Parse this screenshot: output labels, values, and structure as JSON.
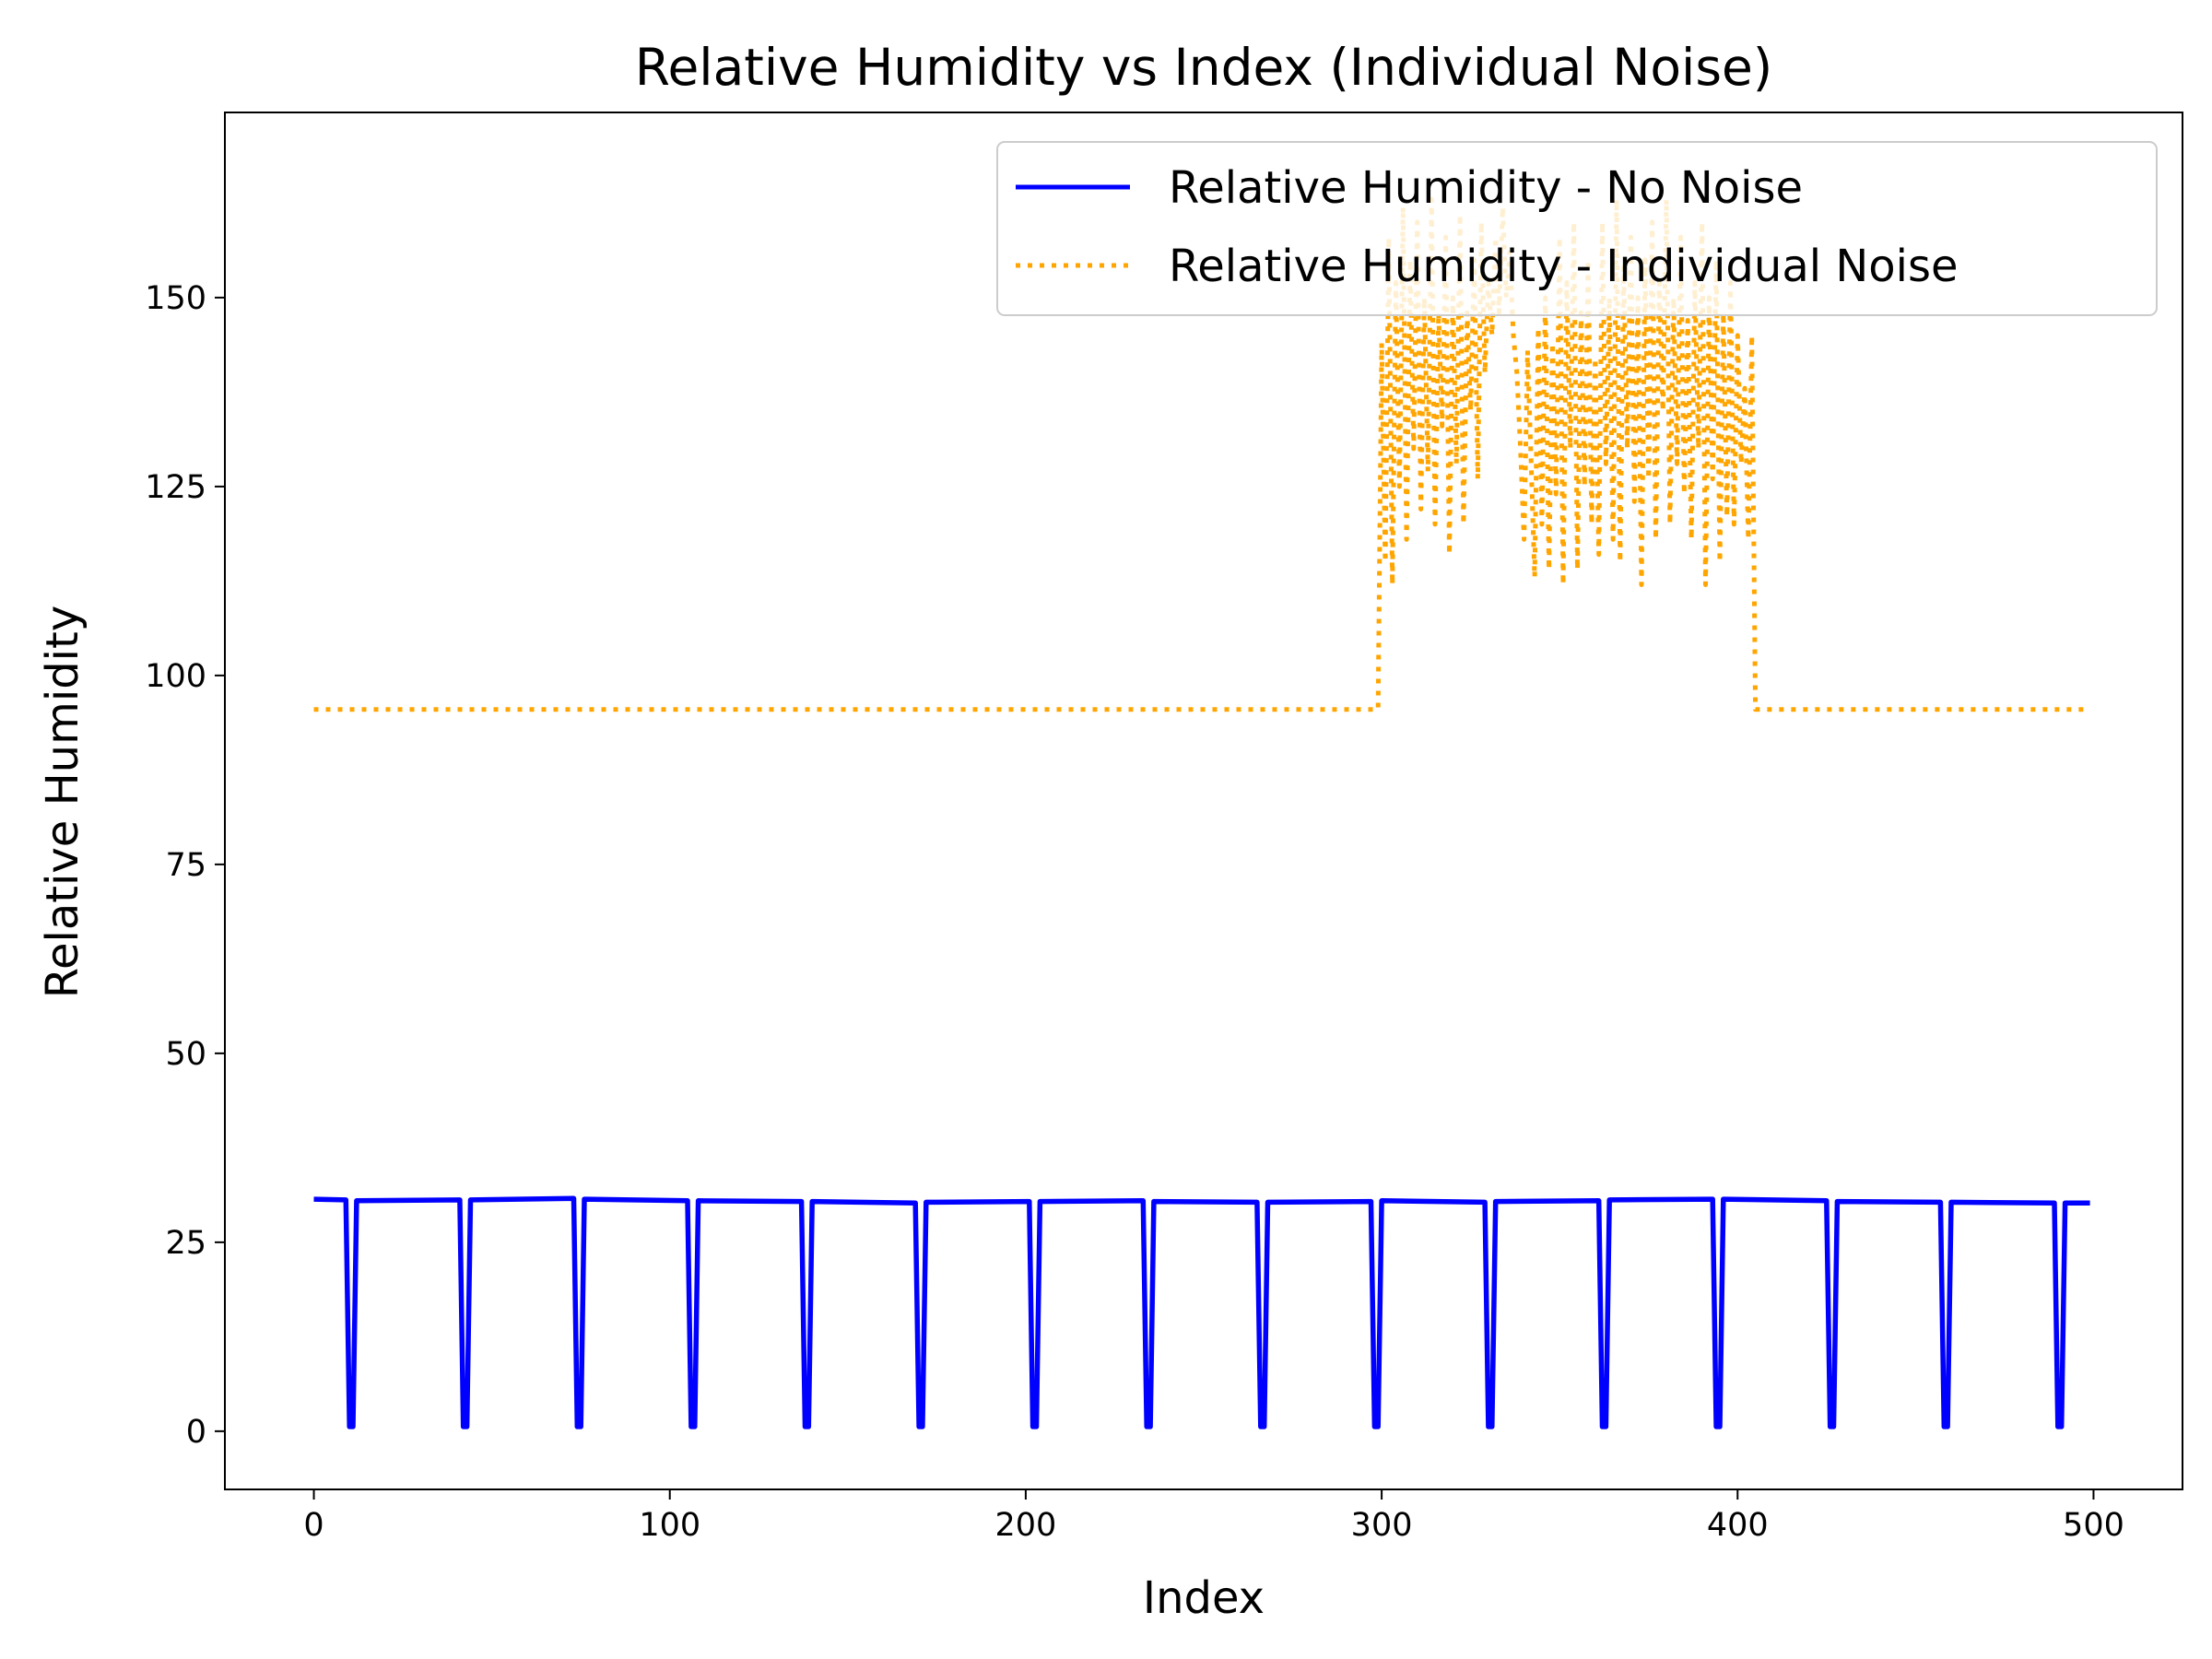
{
  "chart_data": {
    "type": "line",
    "title": "Relative Humidity vs Index (Individual Noise)",
    "xlabel": "Index",
    "ylabel": "Relative Humidity",
    "xlim": [
      -25,
      525
    ],
    "ylim": [
      -7.7,
      174.5
    ],
    "xticks": [
      0,
      100,
      200,
      300,
      400,
      500
    ],
    "yticks": [
      0,
      25,
      50,
      75,
      100,
      125,
      150
    ],
    "grid": false,
    "legend_position": "top-right",
    "series": [
      {
        "name": "Relative Humidity - No Noise",
        "color": "#0000ff",
        "style": "solid",
        "x": [
          0,
          9,
          10,
          11,
          12,
          41,
          42,
          43,
          44,
          73,
          74,
          75,
          76,
          105,
          106,
          107,
          108,
          137,
          138,
          139,
          140,
          169,
          170,
          171,
          172,
          201,
          202,
          203,
          204,
          233,
          234,
          235,
          236,
          265,
          266,
          267,
          268,
          297,
          298,
          299,
          300,
          329,
          330,
          331,
          332,
          361,
          362,
          363,
          364,
          393,
          394,
          395,
          396,
          425,
          426,
          427,
          428,
          457,
          458,
          459,
          460,
          489,
          490,
          491,
          492,
          499
        ],
        "y": [
          30.7,
          30.6,
          0.6,
          0.6,
          30.5,
          30.6,
          0.6,
          0.6,
          30.6,
          30.8,
          0.6,
          0.6,
          30.7,
          30.5,
          0.6,
          0.6,
          30.5,
          30.4,
          0.6,
          0.6,
          30.4,
          30.2,
          0.6,
          0.6,
          30.3,
          30.4,
          0.6,
          0.6,
          30.4,
          30.5,
          0.6,
          0.6,
          30.4,
          30.3,
          0.6,
          0.6,
          30.3,
          30.4,
          0.6,
          0.6,
          30.5,
          30.3,
          0.6,
          0.6,
          30.4,
          30.5,
          0.6,
          0.6,
          30.6,
          30.7,
          0.6,
          0.6,
          30.7,
          30.5,
          0.6,
          0.6,
          30.4,
          30.3,
          0.6,
          0.6,
          30.3,
          30.2,
          0.6,
          0.6,
          30.2,
          30.2
        ]
      },
      {
        "name": "Relative Humidity - Individual Noise",
        "color": "#ffa500",
        "style": "dotted",
        "x": [
          0,
          299,
          300,
          301,
          302,
          303,
          304,
          305,
          306,
          307,
          308,
          309,
          310,
          311,
          312,
          313,
          314,
          315,
          316,
          317,
          318,
          319,
          320,
          321,
          322,
          323,
          324,
          325,
          326,
          327,
          328,
          329,
          330,
          331,
          332,
          333,
          334,
          335,
          336,
          337,
          338,
          339,
          340,
          341,
          342,
          343,
          344,
          345,
          346,
          347,
          348,
          349,
          350,
          351,
          352,
          353,
          354,
          355,
          356,
          357,
          358,
          359,
          360,
          361,
          362,
          363,
          364,
          365,
          366,
          367,
          368,
          369,
          370,
          371,
          372,
          373,
          374,
          375,
          376,
          377,
          378,
          379,
          380,
          381,
          382,
          383,
          384,
          385,
          386,
          387,
          388,
          389,
          390,
          391,
          392,
          393,
          394,
          395,
          396,
          397,
          398,
          399,
          400,
          401,
          402,
          403,
          404,
          405,
          499
        ],
        "y": [
          95.5,
          95.5,
          144,
          115,
          158,
          112,
          152,
          125,
          162,
          118,
          155,
          130,
          160,
          122,
          150,
          127,
          163,
          120,
          148,
          133,
          158,
          116,
          150,
          128,
          161,
          120,
          148,
          135,
          155,
          126,
          160,
          140,
          152,
          145,
          158,
          148,
          162,
          150,
          156,
          145,
          140,
          130,
          118,
          143,
          128,
          113,
          146,
          120,
          150,
          114,
          144,
          124,
          158,
          112,
          152,
          130,
          160,
          114,
          148,
          125,
          155,
          120,
          142,
          116,
          160,
          128,
          150,
          118,
          163,
          115,
          154,
          130,
          158,
          123,
          150,
          112,
          155,
          126,
          160,
          118,
          152,
          135,
          163,
          120,
          150,
          128,
          158,
          124,
          147,
          118,
          152,
          130,
          160,
          112,
          150,
          126,
          155,
          115,
          148,
          121,
          152,
          120,
          145,
          128,
          138,
          118,
          145,
          95.5,
          95.5
        ]
      }
    ]
  }
}
